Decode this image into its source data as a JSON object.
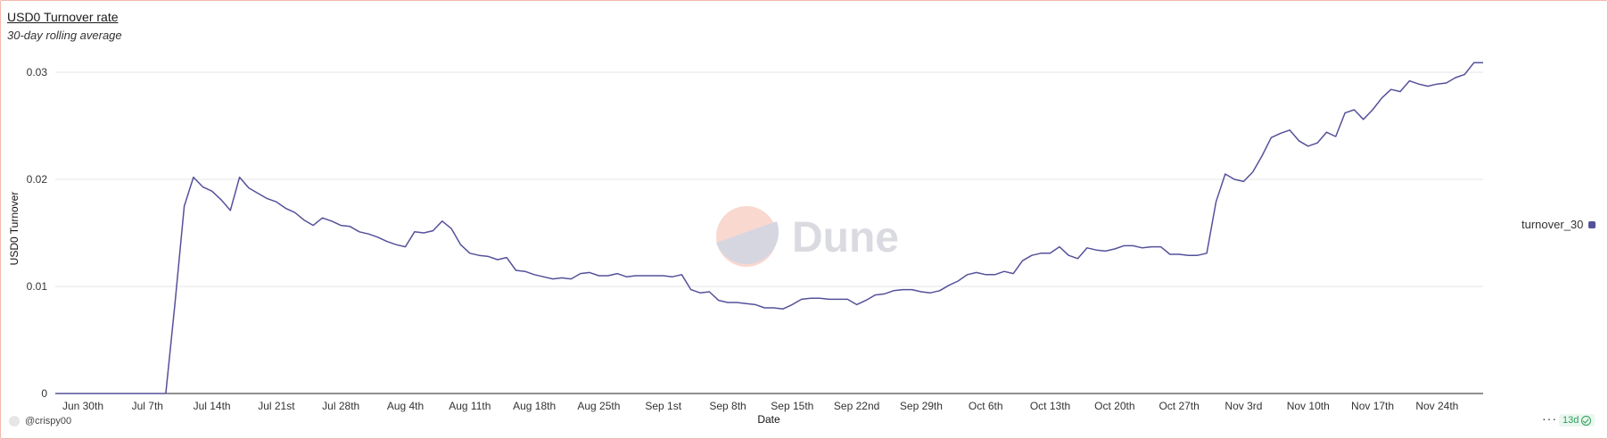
{
  "header": {
    "title": "USD0 Turnover rate",
    "subtitle": "30-day rolling average"
  },
  "watermark": {
    "text": "Dune"
  },
  "footer": {
    "user": "@crispy00",
    "more": "···",
    "age_badge": "13d"
  },
  "colors": {
    "series": "#55519a",
    "grid": "#e6e6e6",
    "axis": "#222222"
  },
  "chart_data": {
    "type": "line",
    "xlabel": "Date",
    "ylabel": "USD0 Turnover",
    "ylim": [
      0,
      0.03
    ],
    "y_ticks": [
      {
        "value": 0,
        "label": "0"
      },
      {
        "value": 0.01,
        "label": "0.01"
      },
      {
        "value": 0.02,
        "label": "0.02"
      },
      {
        "value": 0.03,
        "label": "0.03"
      }
    ],
    "x_ticks": [
      {
        "date": "2024-06-30",
        "label": "Jun 30th"
      },
      {
        "date": "2024-07-07",
        "label": "Jul 7th"
      },
      {
        "date": "2024-07-14",
        "label": "Jul 14th"
      },
      {
        "date": "2024-07-21",
        "label": "Jul 21st"
      },
      {
        "date": "2024-07-28",
        "label": "Jul 28th"
      },
      {
        "date": "2024-08-04",
        "label": "Aug 4th"
      },
      {
        "date": "2024-08-11",
        "label": "Aug 11th"
      },
      {
        "date": "2024-08-18",
        "label": "Aug 18th"
      },
      {
        "date": "2024-08-25",
        "label": "Aug 25th"
      },
      {
        "date": "2024-09-01",
        "label": "Sep 1st"
      },
      {
        "date": "2024-09-08",
        "label": "Sep 8th"
      },
      {
        "date": "2024-09-15",
        "label": "Sep 15th"
      },
      {
        "date": "2024-09-22",
        "label": "Sep 22nd"
      },
      {
        "date": "2024-09-29",
        "label": "Sep 29th"
      },
      {
        "date": "2024-10-06",
        "label": "Oct 6th"
      },
      {
        "date": "2024-10-13",
        "label": "Oct 13th"
      },
      {
        "date": "2024-10-20",
        "label": "Oct 20th"
      },
      {
        "date": "2024-10-27",
        "label": "Oct 27th"
      },
      {
        "date": "2024-11-03",
        "label": "Nov 3rd"
      },
      {
        "date": "2024-11-10",
        "label": "Nov 10th"
      },
      {
        "date": "2024-11-17",
        "label": "Nov 17th"
      },
      {
        "date": "2024-11-24",
        "label": "Nov 24th"
      }
    ],
    "series": [
      {
        "name": "turnover_30",
        "color": "#55519a",
        "points": [
          [
            "2024-06-27",
            0
          ],
          [
            "2024-07-09",
            0
          ],
          [
            "2024-07-10",
            0.0085
          ],
          [
            "2024-07-11",
            0.0175
          ],
          [
            "2024-07-12",
            0.0202
          ],
          [
            "2024-07-13",
            0.0193
          ],
          [
            "2024-07-14",
            0.0189
          ],
          [
            "2024-07-15",
            0.0181
          ],
          [
            "2024-07-16",
            0.0171
          ],
          [
            "2024-07-17",
            0.0202
          ],
          [
            "2024-07-18",
            0.0192
          ],
          [
            "2024-07-19",
            0.0187
          ],
          [
            "2024-07-20",
            0.0182
          ],
          [
            "2024-07-21",
            0.0179
          ],
          [
            "2024-07-22",
            0.0173
          ],
          [
            "2024-07-23",
            0.0169
          ],
          [
            "2024-07-24",
            0.0162
          ],
          [
            "2024-07-25",
            0.0157
          ],
          [
            "2024-07-26",
            0.0164
          ],
          [
            "2024-07-27",
            0.0161
          ],
          [
            "2024-07-28",
            0.0157
          ],
          [
            "2024-07-29",
            0.0156
          ],
          [
            "2024-07-30",
            0.0151
          ],
          [
            "2024-07-31",
            0.0149
          ],
          [
            "2024-08-01",
            0.0146
          ],
          [
            "2024-08-02",
            0.0142
          ],
          [
            "2024-08-03",
            0.0139
          ],
          [
            "2024-08-04",
            0.0137
          ],
          [
            "2024-08-05",
            0.0151
          ],
          [
            "2024-08-06",
            0.015
          ],
          [
            "2024-08-07",
            0.0152
          ],
          [
            "2024-08-08",
            0.0161
          ],
          [
            "2024-08-09",
            0.0154
          ],
          [
            "2024-08-10",
            0.0139
          ],
          [
            "2024-08-11",
            0.0131
          ],
          [
            "2024-08-12",
            0.0129
          ],
          [
            "2024-08-13",
            0.0128
          ],
          [
            "2024-08-14",
            0.0125
          ],
          [
            "2024-08-15",
            0.0127
          ],
          [
            "2024-08-16",
            0.0115
          ],
          [
            "2024-08-17",
            0.0114
          ],
          [
            "2024-08-18",
            0.0111
          ],
          [
            "2024-08-19",
            0.0109
          ],
          [
            "2024-08-20",
            0.0107
          ],
          [
            "2024-08-21",
            0.0108
          ],
          [
            "2024-08-22",
            0.0107
          ],
          [
            "2024-08-23",
            0.0112
          ],
          [
            "2024-08-24",
            0.0113
          ],
          [
            "2024-08-25",
            0.011
          ],
          [
            "2024-08-26",
            0.011
          ],
          [
            "2024-08-27",
            0.0112
          ],
          [
            "2024-08-28",
            0.0109
          ],
          [
            "2024-08-29",
            0.011
          ],
          [
            "2024-08-30",
            0.011
          ],
          [
            "2024-08-31",
            0.011
          ],
          [
            "2024-09-01",
            0.011
          ],
          [
            "2024-09-02",
            0.0109
          ],
          [
            "2024-09-03",
            0.0111
          ],
          [
            "2024-09-04",
            0.0097
          ],
          [
            "2024-09-05",
            0.0094
          ],
          [
            "2024-09-06",
            0.0095
          ],
          [
            "2024-09-07",
            0.0087
          ],
          [
            "2024-09-08",
            0.0085
          ],
          [
            "2024-09-09",
            0.0085
          ],
          [
            "2024-09-10",
            0.0084
          ],
          [
            "2024-09-11",
            0.0083
          ],
          [
            "2024-09-12",
            0.008
          ],
          [
            "2024-09-13",
            0.008
          ],
          [
            "2024-09-14",
            0.0079
          ],
          [
            "2024-09-15",
            0.0083
          ],
          [
            "2024-09-16",
            0.0088
          ],
          [
            "2024-09-17",
            0.0089
          ],
          [
            "2024-09-18",
            0.0089
          ],
          [
            "2024-09-19",
            0.0088
          ],
          [
            "2024-09-20",
            0.0088
          ],
          [
            "2024-09-21",
            0.0088
          ],
          [
            "2024-09-22",
            0.0083
          ],
          [
            "2024-09-23",
            0.0087
          ],
          [
            "2024-09-24",
            0.0092
          ],
          [
            "2024-09-25",
            0.0093
          ],
          [
            "2024-09-26",
            0.0096
          ],
          [
            "2024-09-27",
            0.0097
          ],
          [
            "2024-09-28",
            0.0097
          ],
          [
            "2024-09-29",
            0.0095
          ],
          [
            "2024-09-30",
            0.0094
          ],
          [
            "2024-10-01",
            0.0096
          ],
          [
            "2024-10-02",
            0.0101
          ],
          [
            "2024-10-03",
            0.0105
          ],
          [
            "2024-10-04",
            0.0111
          ],
          [
            "2024-10-05",
            0.0113
          ],
          [
            "2024-10-06",
            0.0111
          ],
          [
            "2024-10-07",
            0.0111
          ],
          [
            "2024-10-08",
            0.0114
          ],
          [
            "2024-10-09",
            0.0112
          ],
          [
            "2024-10-10",
            0.0124
          ],
          [
            "2024-10-11",
            0.0129
          ],
          [
            "2024-10-12",
            0.0131
          ],
          [
            "2024-10-13",
            0.0131
          ],
          [
            "2024-10-14",
            0.0137
          ],
          [
            "2024-10-15",
            0.0129
          ],
          [
            "2024-10-16",
            0.0126
          ],
          [
            "2024-10-17",
            0.0136
          ],
          [
            "2024-10-18",
            0.0134
          ],
          [
            "2024-10-19",
            0.0133
          ],
          [
            "2024-10-20",
            0.0135
          ],
          [
            "2024-10-21",
            0.0138
          ],
          [
            "2024-10-22",
            0.0138
          ],
          [
            "2024-10-23",
            0.0136
          ],
          [
            "2024-10-24",
            0.0137
          ],
          [
            "2024-10-25",
            0.0137
          ],
          [
            "2024-10-26",
            0.013
          ],
          [
            "2024-10-27",
            0.013
          ],
          [
            "2024-10-28",
            0.0129
          ],
          [
            "2024-10-29",
            0.0129
          ],
          [
            "2024-10-30",
            0.0131
          ],
          [
            "2024-10-31",
            0.0179
          ],
          [
            "2024-11-01",
            0.0205
          ],
          [
            "2024-11-02",
            0.02
          ],
          [
            "2024-11-03",
            0.0198
          ],
          [
            "2024-11-04",
            0.0207
          ],
          [
            "2024-11-05",
            0.0222
          ],
          [
            "2024-11-06",
            0.0239
          ],
          [
            "2024-11-07",
            0.0243
          ],
          [
            "2024-11-08",
            0.0246
          ],
          [
            "2024-11-09",
            0.0236
          ],
          [
            "2024-11-10",
            0.0231
          ],
          [
            "2024-11-11",
            0.0234
          ],
          [
            "2024-11-12",
            0.0244
          ],
          [
            "2024-11-13",
            0.024
          ],
          [
            "2024-11-14",
            0.0262
          ],
          [
            "2024-11-15",
            0.0265
          ],
          [
            "2024-11-16",
            0.0256
          ],
          [
            "2024-11-17",
            0.0265
          ],
          [
            "2024-11-18",
            0.0276
          ],
          [
            "2024-11-19",
            0.0284
          ],
          [
            "2024-11-20",
            0.0282
          ],
          [
            "2024-11-21",
            0.0292
          ],
          [
            "2024-11-22",
            0.0289
          ],
          [
            "2024-11-23",
            0.0287
          ],
          [
            "2024-11-24",
            0.0289
          ],
          [
            "2024-11-25",
            0.029
          ],
          [
            "2024-11-26",
            0.0295
          ],
          [
            "2024-11-27",
            0.0298
          ],
          [
            "2024-11-28",
            0.0309
          ],
          [
            "2024-11-29",
            0.0309
          ]
        ]
      }
    ],
    "grid": true,
    "legend_position": "right"
  }
}
